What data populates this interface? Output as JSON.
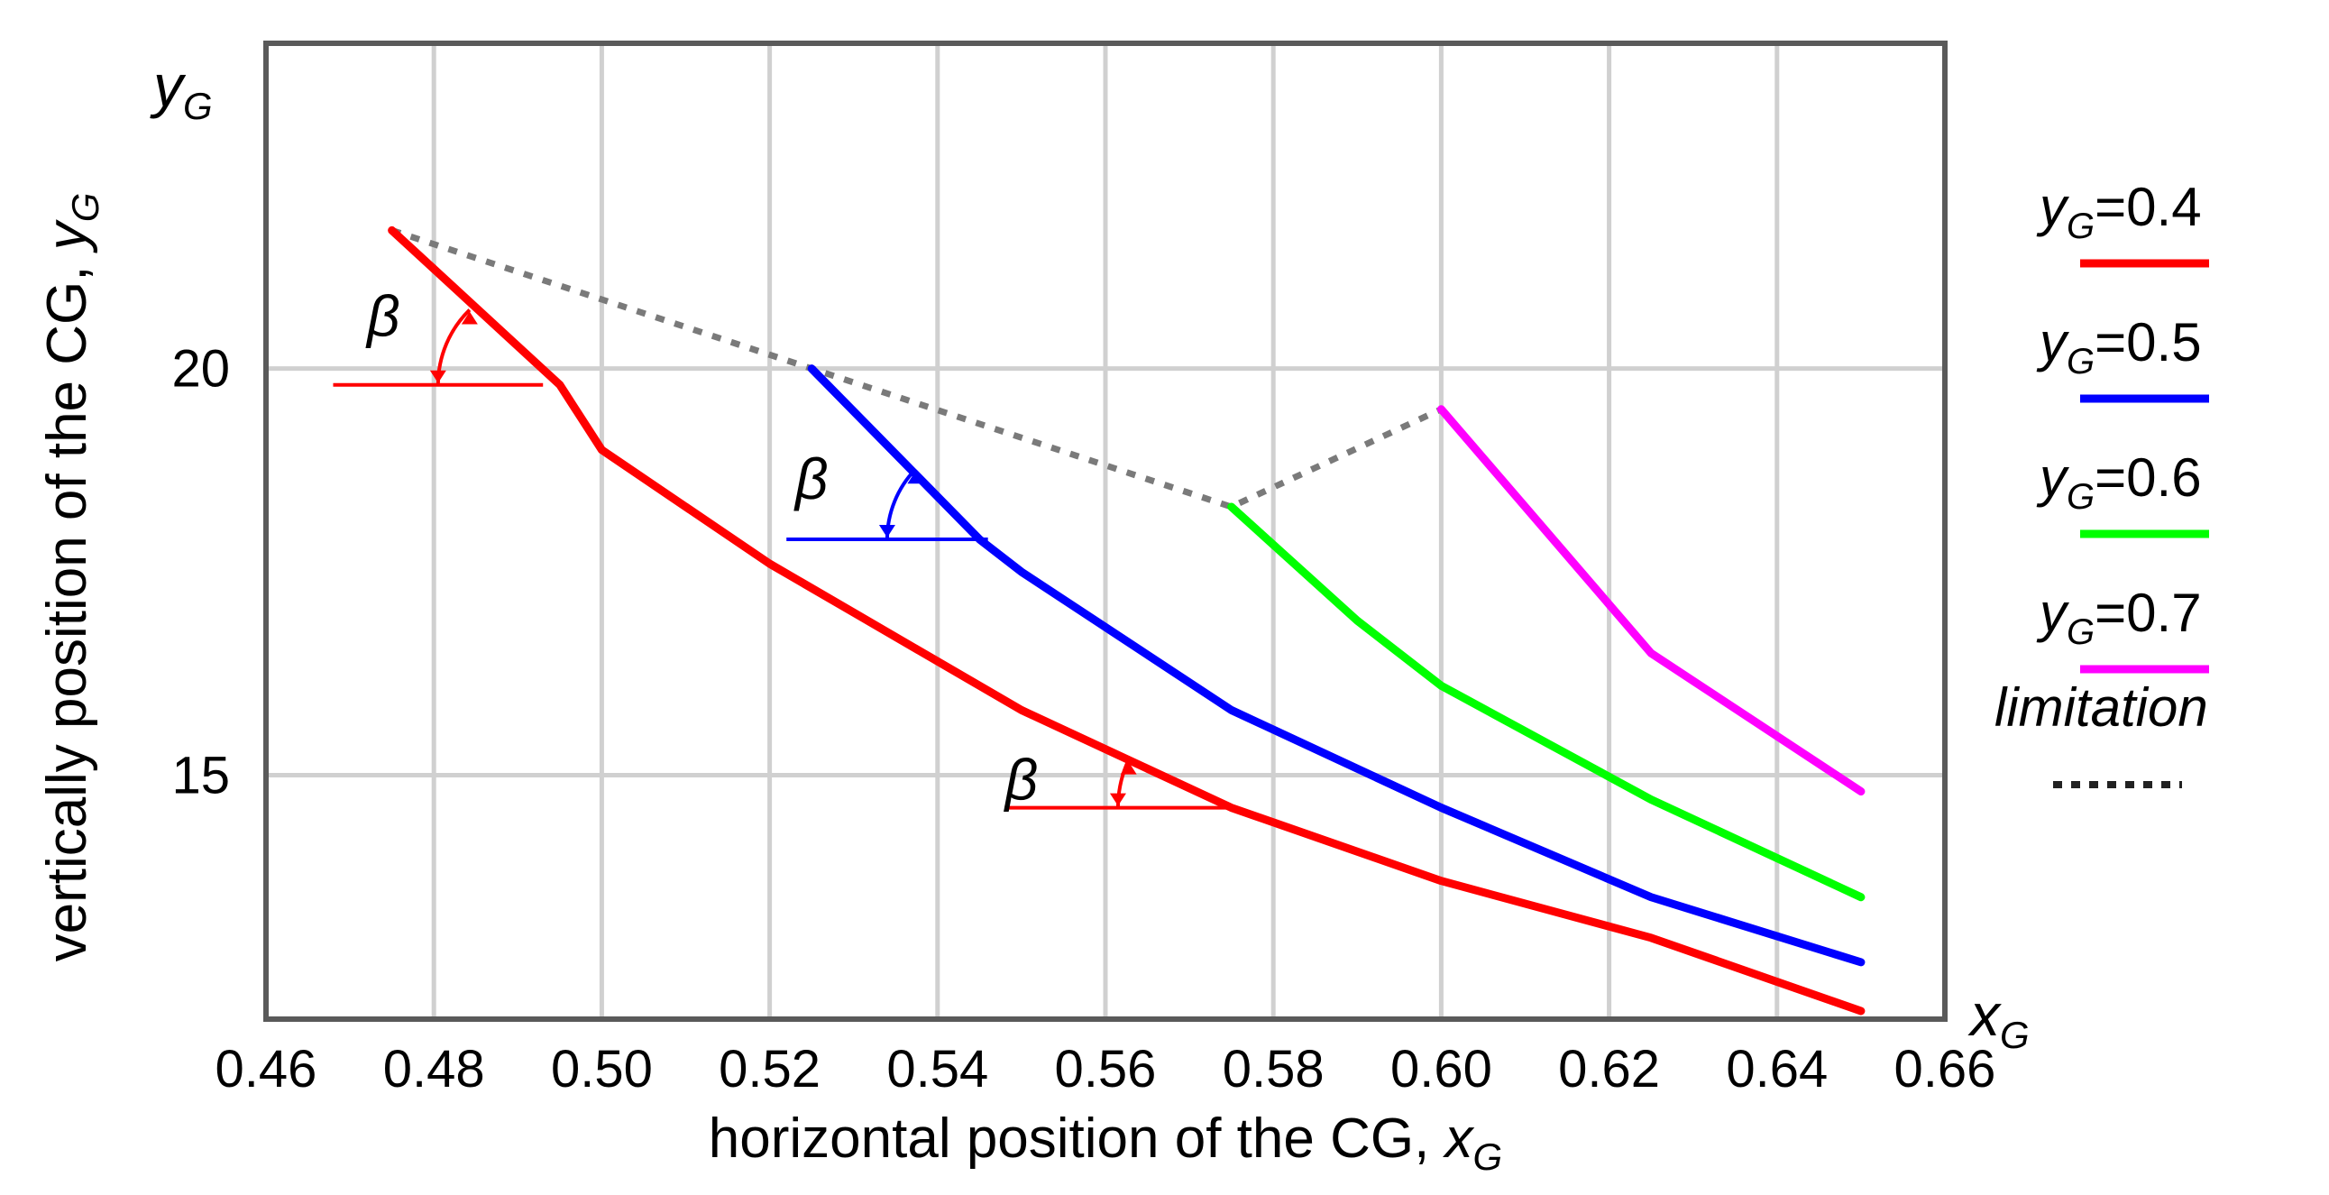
{
  "chart_data": {
    "type": "line",
    "title": "",
    "xlabel": "horizontal position of the CG, ",
    "xlabel_symbol": "x",
    "xlabel_sub": "G",
    "ylabel": "vertically position of the CG, ",
    "ylabel_symbol": "y",
    "ylabel_sub": "G",
    "x_axis_var": {
      "symbol": "x",
      "sub": "G"
    },
    "y_axis_var": {
      "symbol": "y",
      "sub": "G"
    },
    "xlim": [
      0.46,
      0.66
    ],
    "ylim": [
      12.0,
      24.0
    ],
    "x_ticks": [
      0.46,
      0.48,
      0.5,
      0.52,
      0.54,
      0.56,
      0.58,
      0.6,
      0.62,
      0.64,
      0.66
    ],
    "x_tick_labels": [
      "0.46",
      "0.48",
      "0.50",
      "0.52",
      "0.54",
      "0.56",
      "0.58",
      "0.60",
      "0.62",
      "0.64",
      "0.66"
    ],
    "y_ticks": [
      15,
      20
    ],
    "y_tick_labels": [
      "15",
      "20"
    ],
    "grid": true,
    "legend_position": "right",
    "series": [
      {
        "name": "yG=0.4",
        "label_symbol": "y",
        "label_sub": "G",
        "label_value": "=0.4",
        "color": "#ff0000",
        "x": [
          0.475,
          0.495,
          0.5,
          0.52,
          0.53,
          0.55,
          0.575,
          0.6,
          0.625,
          0.65
        ],
        "y": [
          21.7,
          19.8,
          19.0,
          17.6,
          17.0,
          15.8,
          14.6,
          13.7,
          13.0,
          12.1
        ]
      },
      {
        "name": "yG=0.5",
        "label_symbol": "y",
        "label_sub": "G",
        "label_value": "=0.5",
        "color": "#0000ff",
        "x": [
          0.525,
          0.545,
          0.55,
          0.575,
          0.6,
          0.625,
          0.65
        ],
        "y": [
          20.0,
          17.9,
          17.5,
          15.8,
          14.6,
          13.5,
          12.7
        ]
      },
      {
        "name": "yG=0.6",
        "label_symbol": "y",
        "label_sub": "G",
        "label_value": "=0.6",
        "color": "#00ff00",
        "x": [
          0.575,
          0.59,
          0.6,
          0.625,
          0.65
        ],
        "y": [
          18.3,
          16.9,
          16.1,
          14.7,
          13.5
        ]
      },
      {
        "name": "yG=0.7",
        "label_symbol": "y",
        "label_sub": "G",
        "label_value": "=0.7",
        "color": "#ff00ff",
        "x": [
          0.6,
          0.61,
          0.62,
          0.625,
          0.65
        ],
        "y": [
          19.5,
          18.3,
          17.1,
          16.5,
          14.8
        ]
      }
    ],
    "limitation": {
      "name": "limitation",
      "color": "#7a7a7a",
      "x": [
        0.475,
        0.525,
        0.575,
        0.6
      ],
      "y": [
        21.7,
        20.0,
        18.3,
        19.5
      ]
    },
    "annotations": [
      {
        "text": "β",
        "color": "#ff0000",
        "vertex": [
          0.475,
          21.7
        ],
        "ref_y": 19.8,
        "x_range": [
          0.468,
          0.493
        ],
        "label_at": [
          0.474,
          20.4
        ]
      },
      {
        "text": "β",
        "color": "#0000ff",
        "vertex": [
          0.525,
          20.0
        ],
        "ref_y": 17.9,
        "x_range": [
          0.522,
          0.546
        ],
        "label_at": [
          0.525,
          18.4
        ]
      },
      {
        "text": "β",
        "color": "#ff0000",
        "vertex": [
          0.55,
          15.8
        ],
        "ref_y": 14.6,
        "x_range": [
          0.548,
          0.575
        ],
        "label_at": [
          0.55,
          14.7
        ]
      }
    ]
  }
}
